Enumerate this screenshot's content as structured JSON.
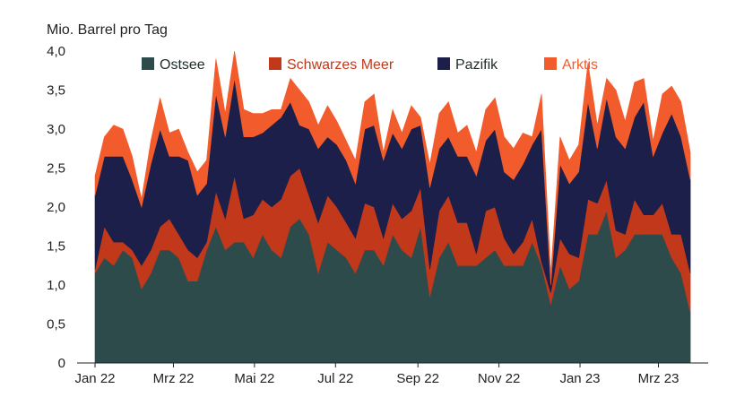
{
  "chart_data": {
    "type": "area",
    "stacked": true,
    "unit_label": "Mio. Barrel pro Tag",
    "ylim": [
      0,
      4
    ],
    "y_ticks": [
      "0",
      "0,5",
      "1,0",
      "1,5",
      "2,0",
      "2,5",
      "3,0",
      "3,5",
      "4,0"
    ],
    "x_range": [
      "2022-01-01",
      "2023-03-29"
    ],
    "x_ticks": [
      {
        "label": "Jan 22",
        "date": "2022-01-01"
      },
      {
        "label": "Mrz 22",
        "date": "2022-03-01"
      },
      {
        "label": "Mai 22",
        "date": "2022-05-01"
      },
      {
        "label": "Jul 22",
        "date": "2022-07-01"
      },
      {
        "label": "Sep 22",
        "date": "2022-09-01"
      },
      {
        "label": "Nov 22",
        "date": "2022-11-01"
      },
      {
        "label": "Jan 23",
        "date": "2023-01-01"
      },
      {
        "label": "Mrz 23",
        "date": "2023-03-01"
      }
    ],
    "legend_position": "top",
    "grid": false,
    "x": [
      "2022-01-01",
      "2022-01-08",
      "2022-01-15",
      "2022-01-22",
      "2022-01-29",
      "2022-02-05",
      "2022-02-12",
      "2022-02-19",
      "2022-02-26",
      "2022-03-05",
      "2022-03-12",
      "2022-03-19",
      "2022-03-26",
      "2022-04-02",
      "2022-04-09",
      "2022-04-16",
      "2022-04-23",
      "2022-04-30",
      "2022-05-07",
      "2022-05-14",
      "2022-05-21",
      "2022-05-28",
      "2022-06-04",
      "2022-06-11",
      "2022-06-18",
      "2022-06-25",
      "2022-07-02",
      "2022-07-09",
      "2022-07-16",
      "2022-07-23",
      "2022-07-30",
      "2022-08-06",
      "2022-08-13",
      "2022-08-20",
      "2022-08-27",
      "2022-09-03",
      "2022-09-10",
      "2022-09-17",
      "2022-09-24",
      "2022-10-01",
      "2022-10-08",
      "2022-10-15",
      "2022-10-22",
      "2022-10-29",
      "2022-11-05",
      "2022-11-12",
      "2022-11-19",
      "2022-11-26",
      "2022-12-03",
      "2022-12-10",
      "2022-12-17",
      "2022-12-24",
      "2022-12-31",
      "2023-01-07",
      "2023-01-14",
      "2023-01-21",
      "2023-01-28",
      "2023-02-04",
      "2023-02-11",
      "2023-02-18",
      "2023-02-25",
      "2023-03-04",
      "2023-03-11",
      "2023-03-18",
      "2023-03-25"
    ],
    "series": [
      {
        "name": "Ostsee",
        "color": "#2e4b4b",
        "values": [
          1.15,
          1.35,
          1.25,
          1.45,
          1.35,
          0.95,
          1.15,
          1.45,
          1.45,
          1.35,
          1.05,
          1.05,
          1.45,
          1.75,
          1.45,
          1.55,
          1.55,
          1.35,
          1.65,
          1.45,
          1.35,
          1.75,
          1.85,
          1.65,
          1.15,
          1.55,
          1.45,
          1.35,
          1.15,
          1.45,
          1.45,
          1.25,
          1.65,
          1.45,
          1.35,
          1.75,
          0.85,
          1.35,
          1.55,
          1.25,
          1.25,
          1.25,
          1.35,
          1.45,
          1.25,
          1.25,
          1.25,
          1.55,
          1.25,
          0.75,
          1.25,
          0.95,
          1.05,
          1.65,
          1.65,
          1.95,
          1.35,
          1.45,
          1.65,
          1.65,
          1.65,
          1.65,
          1.35,
          1.15,
          0.65
        ]
      },
      {
        "name": "Schwarzes Meer",
        "color": "#c1381b",
        "values": [
          0.05,
          0.4,
          0.3,
          0.1,
          0.1,
          0.3,
          0.3,
          0.3,
          0.4,
          0.3,
          0.4,
          0.3,
          0.1,
          0.45,
          0.4,
          0.85,
          0.3,
          0.55,
          0.45,
          0.55,
          0.75,
          0.65,
          0.65,
          0.5,
          0.65,
          0.6,
          0.55,
          0.45,
          0.45,
          0.6,
          0.55,
          0.35,
          0.4,
          0.4,
          0.6,
          0.5,
          0.35,
          0.6,
          0.6,
          0.55,
          0.55,
          0.15,
          0.6,
          0.55,
          0.35,
          0.15,
          0.3,
          0.3,
          0.05,
          0.15,
          0.35,
          0.45,
          0.3,
          0.45,
          0.4,
          0.4,
          0.35,
          0.2,
          0.45,
          0.25,
          0.25,
          0.4,
          0.3,
          0.5,
          0.5
        ]
      },
      {
        "name": "Pazifik",
        "color": "#1c1f4a",
        "values": [
          0.95,
          0.9,
          1.1,
          1.1,
          0.9,
          0.75,
          1.1,
          1.25,
          0.8,
          1.0,
          1.15,
          0.8,
          0.75,
          1.25,
          1.05,
          1.25,
          1.05,
          1.0,
          0.85,
          1.05,
          1.05,
          0.95,
          0.55,
          0.85,
          0.95,
          0.75,
          0.8,
          0.8,
          0.7,
          0.95,
          1.05,
          1.0,
          0.9,
          0.9,
          1.05,
          0.8,
          1.05,
          0.8,
          0.75,
          0.85,
          0.85,
          1.0,
          0.9,
          1.0,
          0.85,
          0.95,
          1.0,
          0.95,
          1.7,
          0.1,
          0.95,
          0.9,
          1.1,
          1.25,
          0.7,
          1.05,
          1.2,
          1.1,
          1.05,
          1.45,
          0.75,
          0.9,
          1.55,
          1.25,
          1.2
        ]
      },
      {
        "name": "Arktis",
        "color": "#f25c2c",
        "values": [
          0.25,
          0.25,
          0.4,
          0.35,
          0.3,
          0.1,
          0.3,
          0.4,
          0.3,
          0.35,
          0.1,
          0.3,
          0.3,
          0.45,
          0.3,
          0.35,
          0.35,
          0.3,
          0.25,
          0.2,
          0.1,
          0.3,
          0.45,
          0.35,
          0.3,
          0.4,
          0.3,
          0.25,
          0.3,
          0.35,
          0.4,
          0.1,
          0.3,
          0.2,
          0.3,
          0.1,
          0.3,
          0.45,
          0.45,
          0.3,
          0.4,
          0.3,
          0.4,
          0.4,
          0.45,
          0.4,
          0.4,
          0.1,
          0.45,
          0.15,
          0.35,
          0.3,
          0.35,
          0.5,
          0.3,
          0.25,
          0.6,
          0.35,
          0.45,
          0.3,
          0.2,
          0.5,
          0.35,
          0.45,
          0.35
        ]
      }
    ]
  }
}
